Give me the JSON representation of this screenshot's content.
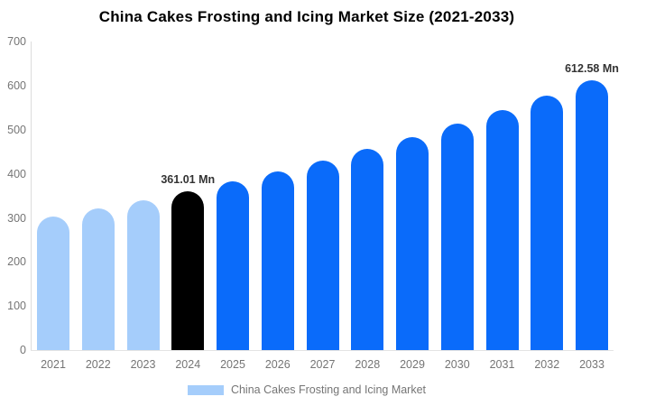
{
  "title": "China Cakes Frosting and Icing Market Size (2021-2033)",
  "legend": {
    "label": "China Cakes Frosting and Icing Market"
  },
  "colors": {
    "past_bar": "#a5cdfb",
    "current_bar": "#000000",
    "forecast_bar": "#0a6bfa",
    "axis_line": "#dcdcdc",
    "baseline_line": "#e3e3e3",
    "tick_text": "#757575",
    "annotation_text": "#333333",
    "title_text": "#000000",
    "legend_text": "#757575"
  },
  "chart_data": {
    "type": "bar",
    "title": "China Cakes Frosting and Icing Market Size (2021-2033)",
    "unit": "Mn",
    "categories": [
      "2021",
      "2022",
      "2023",
      "2024",
      "2025",
      "2026",
      "2027",
      "2028",
      "2029",
      "2030",
      "2031",
      "2032",
      "2033"
    ],
    "values": [
      302.6,
      321.0,
      340.4,
      361.01,
      382.9,
      406.1,
      430.6,
      456.7,
      484.3,
      513.7,
      544.8,
      577.8,
      612.58
    ],
    "roles": [
      "past",
      "past",
      "past",
      "current",
      "forecast",
      "forecast",
      "forecast",
      "forecast",
      "forecast",
      "forecast",
      "forecast",
      "forecast",
      "forecast"
    ],
    "annotations": [
      {
        "category": "2024",
        "text": "361.01 Mn"
      },
      {
        "category": "2033",
        "text": "612.58 Mn"
      }
    ],
    "xlabel": "",
    "ylabel": "",
    "ylim": [
      0,
      700
    ],
    "yticks": [
      0,
      100,
      200,
      300,
      400,
      500,
      600,
      700
    ],
    "grid": false,
    "legend_entries": [
      "China Cakes Frosting and Icing Market"
    ],
    "legend_position": "bottom"
  }
}
